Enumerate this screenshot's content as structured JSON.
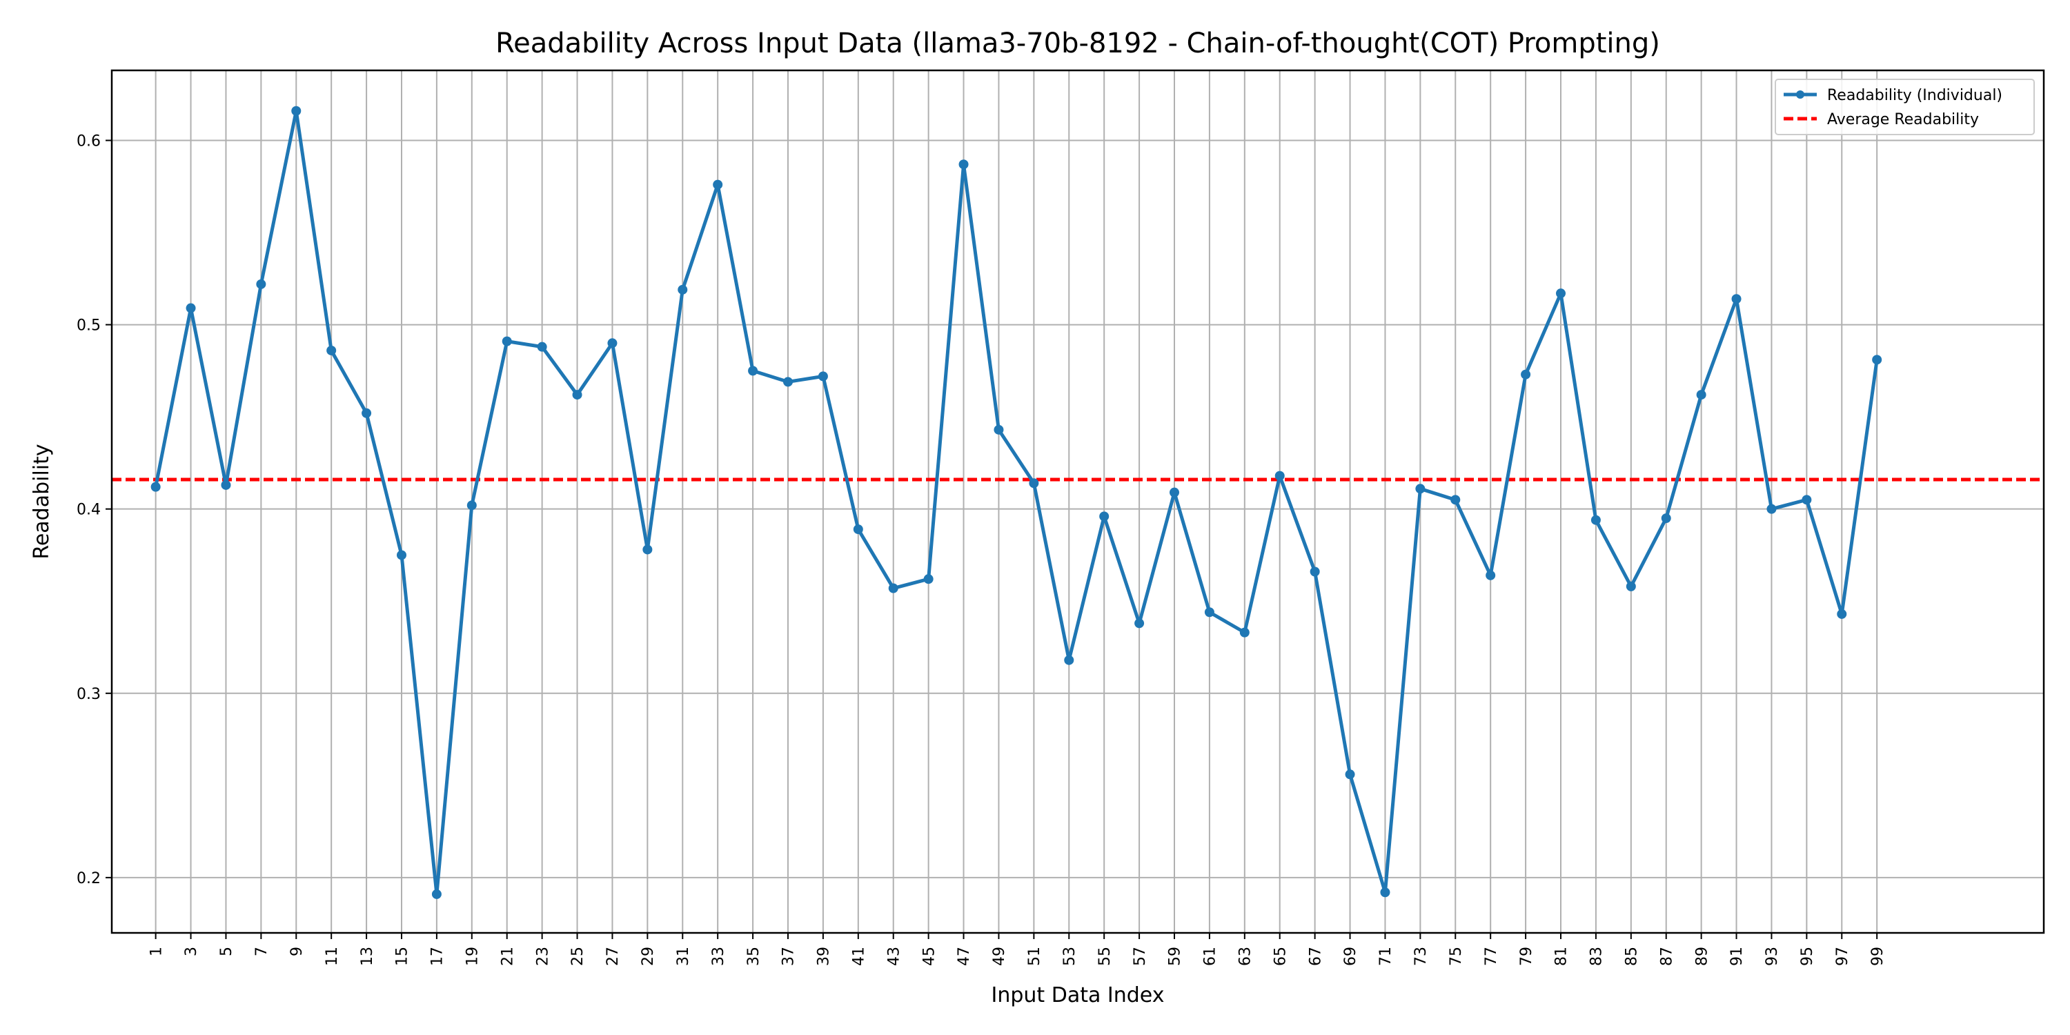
{
  "chart_data": {
    "type": "line",
    "title": "Readability Across Input Data (llama3-70b-8192 - Chain-of-thought(COT) Prompting)",
    "xlabel": "Input Data Index",
    "ylabel": "Readability",
    "xlim": [
      -1.5,
      108.5
    ],
    "ylim": [
      0.17,
      0.638
    ],
    "yticks": [
      0.2,
      0.3,
      0.4,
      0.5,
      0.6
    ],
    "ytick_labels": [
      "0.2",
      "0.3",
      "0.4",
      "0.5",
      "0.6"
    ],
    "grid": true,
    "legend_position": "top-right",
    "x": [
      1,
      3,
      5,
      7,
      9,
      11,
      13,
      15,
      17,
      19,
      21,
      23,
      25,
      27,
      29,
      31,
      33,
      35,
      37,
      39,
      41,
      43,
      45,
      47,
      49,
      51,
      53,
      55,
      57,
      59,
      61,
      63,
      65,
      67,
      69,
      71,
      73,
      75,
      77,
      79,
      81,
      83,
      85,
      87,
      89,
      91,
      93,
      95,
      97,
      99
    ],
    "xtick_labels": [
      "1",
      "3",
      "5",
      "7",
      "9",
      "11",
      "13",
      "15",
      "17",
      "19",
      "21",
      "23",
      "25",
      "27",
      "29",
      "31",
      "33",
      "35",
      "37",
      "39",
      "41",
      "43",
      "45",
      "47",
      "49",
      "51",
      "53",
      "55",
      "57",
      "59",
      "61",
      "63",
      "65",
      "67",
      "69",
      "71",
      "73",
      "75",
      "77",
      "79",
      "81",
      "83",
      "85",
      "87",
      "89",
      "91",
      "93",
      "95",
      "97",
      "99"
    ],
    "series": [
      {
        "name": "Readability (Individual)",
        "color": "#1f77b4",
        "values": [
          0.412,
          0.509,
          0.413,
          0.522,
          0.616,
          0.486,
          0.452,
          0.375,
          0.191,
          0.402,
          0.491,
          0.488,
          0.462,
          0.49,
          0.378,
          0.519,
          0.576,
          0.475,
          0.469,
          0.472,
          0.389,
          0.357,
          0.362,
          0.587,
          0.443,
          0.414,
          0.318,
          0.396,
          0.338,
          0.409,
          0.344,
          0.333,
          0.418,
          0.366,
          0.256,
          0.192,
          0.411,
          0.405,
          0.364,
          0.473,
          0.517,
          0.394,
          0.358,
          0.395,
          0.462,
          0.514,
          0.4,
          0.405,
          0.343,
          0.481
        ]
      }
    ],
    "average": {
      "name": "Average Readability",
      "value": 0.416,
      "color": "#ff0000"
    }
  }
}
